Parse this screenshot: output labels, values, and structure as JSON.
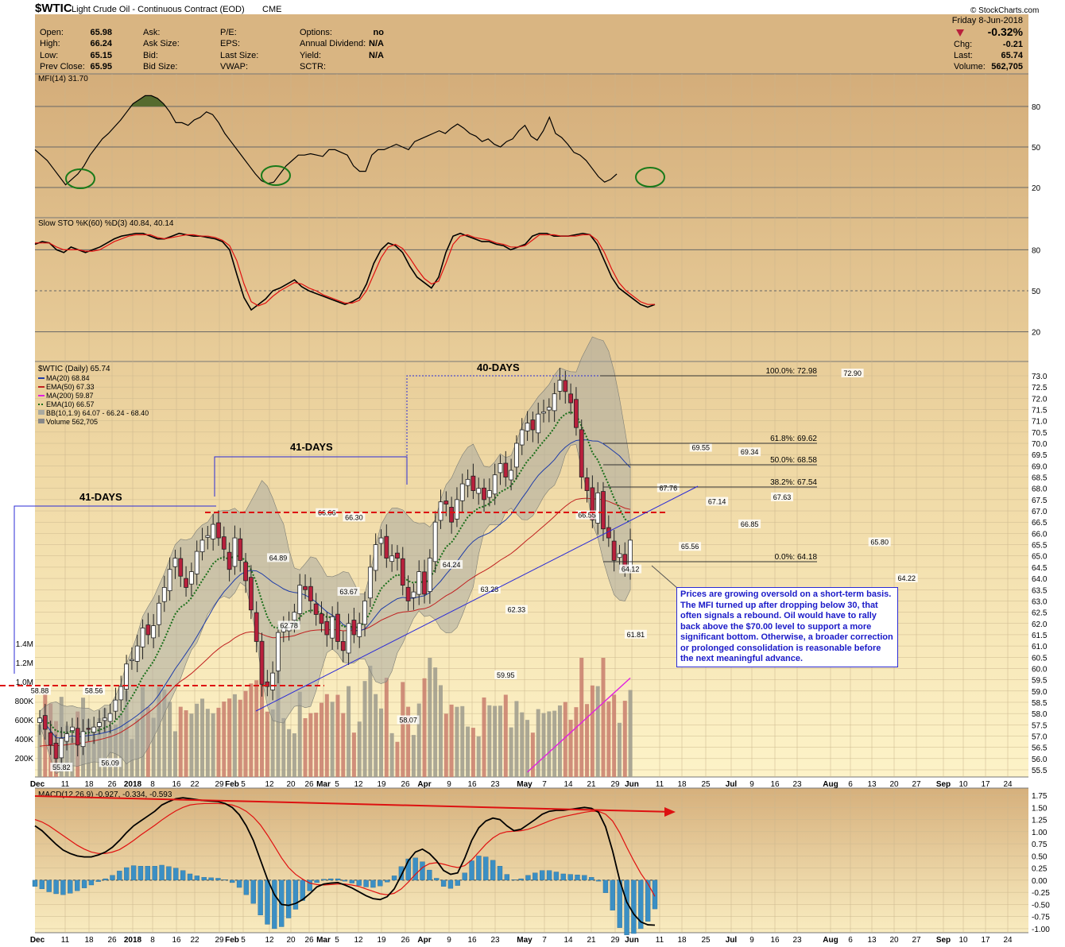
{
  "header": {
    "symbol": "$WTIC",
    "name": "Light Crude Oil - Continuous Contract (EOD)",
    "exchange": "CME",
    "date": "Friday   8-Jun-2018",
    "pct_change": "-0.32%",
    "open_label": "Open:",
    "open": "65.98",
    "high_label": "High:",
    "high": "66.24",
    "low_label": "Low:",
    "low": "65.15",
    "prev_label": "Prev Close:",
    "prev": "65.95",
    "ask_label": "Ask:",
    "asksize_label": "Ask Size:",
    "bid_label": "Bid:",
    "bidsize_label": "Bid Size:",
    "pe_label": "P/E:",
    "eps_label": "EPS:",
    "lastsize_label": "Last Size:",
    "vwap_label": "VWAP:",
    "options_label": "Options:",
    "options": "no",
    "div_label": "Annual Dividend:",
    "div": "N/A",
    "yield_label": "Yield:",
    "yield": "N/A",
    "sctr_label": "SCTR:",
    "chg_label": "Chg:",
    "chg": "-0.21",
    "last_label": "Last:",
    "last": "65.74",
    "volume_label": "Volume:",
    "volume": "562,705",
    "watermark": "© StockCharts.com"
  },
  "colors": {
    "bg_top": "#d4ad7a",
    "bg_bottom": "#fdf3c8",
    "candle_up": "#ffffff",
    "candle_down": "#b8203c",
    "ma20": "#1e3ca8",
    "ema50": "#c02020",
    "ma200": "#e020e0",
    "ema10": "#1a6e1a",
    "band_fill": "#a9aaa0",
    "macd_hist": "#3b8fc4",
    "annot": "#1a1ac8",
    "red_dash": "#dd1111"
  },
  "chart_data": [
    {
      "panel": "mfi",
      "type": "line",
      "title": "MFI(14) 31.70",
      "ylim": [
        0,
        100
      ],
      "y_ticks": [
        "80",
        "50",
        "20"
      ],
      "values": [
        48,
        44,
        40,
        34,
        28,
        22,
        26,
        30,
        36,
        44,
        50,
        56,
        60,
        65,
        70,
        76,
        82,
        85,
        88,
        88,
        86,
        82,
        76,
        68,
        68,
        66,
        70,
        72,
        76,
        74,
        68,
        60,
        54,
        48,
        42,
        36,
        30,
        25,
        23,
        24,
        30,
        36,
        40,
        44,
        44,
        45,
        44,
        43,
        48,
        48,
        46,
        44,
        36,
        32,
        32,
        44,
        48,
        48,
        50,
        52,
        50,
        48,
        54,
        56,
        58,
        60,
        62,
        60,
        64,
        67,
        64,
        60,
        58,
        54,
        56,
        52,
        50,
        54,
        56,
        62,
        66,
        58,
        55,
        62,
        72,
        60,
        57,
        52,
        46,
        44,
        40,
        34,
        28,
        24,
        26,
        30
      ]
    },
    {
      "panel": "stochastic",
      "type": "line",
      "title": "Slow STO %K(60) %D(3) 40.84, 40.14",
      "ylim": [
        0,
        100
      ],
      "y_ticks": [
        "80",
        "50",
        "20"
      ],
      "series": [
        {
          "name": "%K(60)",
          "values": [
            84,
            86,
            85,
            80,
            78,
            82,
            80,
            78,
            80,
            82,
            85,
            88,
            90,
            91,
            92,
            92,
            90,
            88,
            88,
            90,
            92,
            91,
            90,
            90,
            89,
            88,
            86,
            80,
            62,
            45,
            36,
            40,
            44,
            50,
            52,
            55,
            58,
            53,
            50,
            48,
            46,
            44,
            42,
            40,
            42,
            45,
            55,
            70,
            80,
            85,
            83,
            78,
            68,
            60,
            56,
            52,
            60,
            78,
            90,
            92,
            90,
            88,
            86,
            86,
            84,
            83,
            80,
            82,
            84,
            90,
            92,
            92,
            90,
            90,
            90,
            91,
            92,
            91,
            84,
            72,
            60,
            52,
            48,
            44,
            40,
            38,
            40
          ],
          "color": "#000000"
        },
        {
          "name": "%D(3)",
          "values": [
            85,
            85,
            85,
            82,
            80,
            80,
            80,
            79,
            79,
            80,
            83,
            86,
            88,
            90,
            91,
            91,
            91,
            89,
            88,
            89,
            90,
            91,
            91,
            90,
            90,
            89,
            87,
            83,
            72,
            55,
            42,
            39,
            41,
            46,
            50,
            53,
            56,
            55,
            52,
            50,
            47,
            45,
            43,
            41,
            41,
            43,
            50,
            62,
            74,
            82,
            84,
            81,
            74,
            66,
            59,
            55,
            57,
            70,
            84,
            90,
            91,
            89,
            88,
            87,
            85,
            84,
            82,
            82,
            83,
            87,
            91,
            91,
            91,
            90,
            90,
            90,
            91,
            91,
            87,
            78,
            66,
            56,
            50,
            46,
            42,
            40,
            40
          ],
          "color": "#e01010"
        }
      ]
    },
    {
      "panel": "price",
      "type": "candlestick",
      "title": "$WTIC (Daily) 65.74",
      "legend": [
        "MA(20) 68.84",
        "EMA(50) 67.33",
        "MA(200) 59.87",
        "EMA(10) 66.57",
        "BB(10,1.9) 64.07 - 66.24 - 68.40",
        "Volume 562,705"
      ],
      "ylim": [
        55.5,
        73.0
      ],
      "y_ticks": [
        "73.0",
        "72.5",
        "72.0",
        "71.5",
        "71.0",
        "70.5",
        "70.0",
        "69.5",
        "69.0",
        "68.5",
        "68.0",
        "67.5",
        "67.0",
        "66.5",
        "66.0",
        "65.5",
        "65.0",
        "64.5",
        "64.0",
        "63.5",
        "63.0",
        "62.5",
        "62.0",
        "61.5",
        "61.0",
        "60.5",
        "60.0",
        "59.5",
        "59.0",
        "58.5",
        "58.0",
        "57.5",
        "57.0",
        "56.5",
        "56.0",
        "55.5"
      ],
      "x_ticks": [
        "Dec",
        "11",
        "18",
        "26",
        "2018",
        "8",
        "16",
        "22",
        "29",
        "Feb",
        "5",
        "12",
        "20",
        "26",
        "Mar",
        "5",
        "12",
        "19",
        "26",
        "Apr",
        "9",
        "16",
        "23",
        "May",
        "7",
        "14",
        "21",
        "29",
        "Jun",
        "11",
        "18",
        "25",
        "Jul",
        "9",
        "16",
        "23",
        "Aug",
        "6",
        "13",
        "20",
        "27",
        "Sep",
        "10",
        "17",
        "24"
      ],
      "close": [
        57.8,
        57.3,
        56.6,
        56.0,
        56.9,
        57.1,
        57.4,
        56.6,
        57.2,
        57.3,
        57.4,
        57.6,
        57.8,
        58.0,
        58.6,
        59.2,
        60.2,
        60.4,
        61.0,
        61.8,
        61.5,
        61.9,
        62.9,
        63.6,
        64.4,
        64.9,
        64.1,
        63.6,
        64.3,
        65.2,
        65.7,
        65.9,
        66.4,
        65.8,
        65.3,
        64.4,
        65.8,
        64.8,
        63.9,
        62.6,
        61.2,
        59.3,
        59.2,
        59.8,
        61.6,
        61.8,
        62.0,
        62.5,
        63.7,
        63.5,
        63.0,
        62.4,
        62.0,
        61.5,
        62.3,
        61.2,
        60.8,
        62.0,
        61.5,
        62.0,
        63.0,
        64.5,
        65.5,
        65.8,
        64.9,
        65.0,
        64.9,
        63.7,
        63.0,
        63.4,
        64.3,
        63.3,
        64.9,
        66.5,
        67.4,
        67.3,
        66.5,
        67.5,
        68.2,
        68.4,
        67.9,
        68.0,
        67.5,
        67.9,
        68.6,
        69.1,
        68.5,
        68.8,
        70.0,
        70.6,
        70.9,
        70.6,
        71.3,
        71.4,
        71.6,
        72.2,
        72.8,
        72.3,
        71.8,
        70.7,
        68.5,
        67.9,
        66.6,
        67.8,
        66.2,
        65.8,
        64.8,
        65.1,
        64.5,
        65.7
      ]
    },
    {
      "panel": "volume",
      "type": "bar",
      "y_ticks": [
        "1.4M",
        "1.2M",
        "1.0M",
        "800K",
        "600K",
        "400K",
        "200K"
      ]
    },
    {
      "panel": "macd",
      "type": "line",
      "title": "MACD(12,26,9) -0.927, -0.334, -0.593",
      "ylim": [
        -1.05,
        1.8
      ],
      "y_ticks": [
        "1.75",
        "1.50",
        "1.25",
        "1.00",
        "0.75",
        "0.50",
        "0.25",
        "0.00",
        "-0.25",
        "-0.50",
        "-0.75",
        "-1.00"
      ],
      "x_ticks": [
        "Dec",
        "11",
        "18",
        "26",
        "2018",
        "8",
        "16",
        "22",
        "29",
        "Feb",
        "5",
        "12",
        "20",
        "26",
        "Mar",
        "5",
        "12",
        "19",
        "26",
        "Apr",
        "9",
        "16",
        "23",
        "May",
        "7",
        "14",
        "21",
        "29",
        "Jun",
        "11",
        "18",
        "25",
        "Jul",
        "9",
        "16",
        "23",
        "Aug",
        "6",
        "13",
        "20",
        "27",
        "Sep",
        "10",
        "17",
        "24"
      ],
      "series": [
        {
          "name": "MACD(12,26,9)",
          "values": [
            1.12,
            1.02,
            0.88,
            0.74,
            0.62,
            0.55,
            0.5,
            0.48,
            0.48,
            0.52,
            0.58,
            0.68,
            0.82,
            0.98,
            1.12,
            1.22,
            1.32,
            1.42,
            1.55,
            1.62,
            1.68,
            1.7,
            1.68,
            1.66,
            1.64,
            1.63,
            1.62,
            1.58,
            1.5,
            1.35,
            1.12,
            0.82,
            0.42,
            0.02,
            -0.3,
            -0.5,
            -0.52,
            -0.48,
            -0.4,
            -0.28,
            -0.14,
            -0.08,
            -0.06,
            -0.05,
            -0.1,
            -0.16,
            -0.24,
            -0.32,
            -0.38,
            -0.4,
            -0.34,
            -0.18,
            0.1,
            0.4,
            0.58,
            0.64,
            0.55,
            0.4,
            0.2,
            0.12,
            0.15,
            0.45,
            0.82,
            1.08,
            1.22,
            1.28,
            1.25,
            1.12,
            1.02,
            1.05,
            1.15,
            1.25,
            1.36,
            1.42,
            1.44,
            1.44,
            1.46,
            1.48,
            1.5,
            1.48,
            1.4,
            1.1,
            0.6,
            0.0,
            -0.45,
            -0.7,
            -0.86,
            -0.92,
            -0.927
          ]
        },
        {
          "name": "Signal",
          "values": [
            1.25,
            1.2,
            1.12,
            1.02,
            0.92,
            0.82,
            0.72,
            0.64,
            0.58,
            0.55,
            0.55,
            0.58,
            0.63,
            0.72,
            0.82,
            0.93,
            1.03,
            1.13,
            1.24,
            1.34,
            1.43,
            1.5,
            1.55,
            1.57,
            1.58,
            1.58,
            1.58,
            1.57,
            1.55,
            1.5,
            1.42,
            1.3,
            1.14,
            0.93,
            0.7,
            0.46,
            0.26,
            0.12,
            0.02,
            -0.06,
            -0.09,
            -0.1,
            -0.09,
            -0.08,
            -0.08,
            -0.1,
            -0.13,
            -0.18,
            -0.23,
            -0.28,
            -0.3,
            -0.27,
            -0.18,
            -0.04,
            0.12,
            0.26,
            0.34,
            0.36,
            0.33,
            0.29,
            0.26,
            0.3,
            0.42,
            0.58,
            0.74,
            0.87,
            0.96,
            1.0,
            1.01,
            1.02,
            1.05,
            1.1,
            1.16,
            1.22,
            1.27,
            1.31,
            1.34,
            1.37,
            1.4,
            1.42,
            1.42,
            1.36,
            1.22,
            0.98,
            0.68,
            0.4,
            0.14,
            -0.07,
            -0.334
          ]
        }
      ]
    }
  ],
  "annotations": {
    "days_41_a": "41-DAYS",
    "days_41_b": "41-DAYS",
    "days_40": "40-DAYS",
    "fib_100": "100.0%: 72.98",
    "fib_618": "61.8%: 69.62",
    "fib_50": "50.0%: 68.58",
    "fib_382": "38.2%: 67.54",
    "fib_0": "0.0%: 64.18",
    "note": "Prices are growing oversold on a short-term basis. The MFI turned up after dropping below 30, that often signals a rebound. Oil would have to rally back above the $70.00 level to support a more significant bottom. Otherwise, a broader correction or prolonged consolidation is reasonable before the next meaningful advance.",
    "price_labels": [
      {
        "text": "58.88",
        "x": 0,
        "y": 58.9
      },
      {
        "text": "58.56",
        "x": 10,
        "y": 58.9
      },
      {
        "text": "55.82",
        "x": 4,
        "y": 55.5
      },
      {
        "text": "56.09",
        "x": 13,
        "y": 55.7
      },
      {
        "text": "64.89",
        "x": 44,
        "y": 64.8
      },
      {
        "text": "62.78",
        "x": 46,
        "y": 61.8
      },
      {
        "text": "66.66",
        "x": 53,
        "y": 66.8
      },
      {
        "text": "66.30",
        "x": 58,
        "y": 66.6
      },
      {
        "text": "63.67",
        "x": 57,
        "y": 63.3
      },
      {
        "text": "58.07",
        "x": 68,
        "y": 57.6
      },
      {
        "text": "64.24",
        "x": 76,
        "y": 64.5
      },
      {
        "text": "63.28",
        "x": 83,
        "y": 63.4
      },
      {
        "text": "62.33",
        "x": 88,
        "y": 62.5
      },
      {
        "text": "59.95",
        "x": 86,
        "y": 59.6
      },
      {
        "text": "66.55",
        "x": 101,
        "y": 66.7
      },
      {
        "text": "64.12",
        "x": 109,
        "y": 64.3
      },
      {
        "text": "61.81",
        "x": 110,
        "y": 61.4
      },
      {
        "text": "67.76",
        "x": 116,
        "y": 67.9
      },
      {
        "text": "65.56",
        "x": 120,
        "y": 65.3
      },
      {
        "text": "67.14",
        "x": 125,
        "y": 67.3
      },
      {
        "text": "69.55",
        "x": 122,
        "y": 69.7
      },
      {
        "text": "69.34",
        "x": 131,
        "y": 69.5
      },
      {
        "text": "66.85",
        "x": 131,
        "y": 66.3
      },
      {
        "text": "67.63",
        "x": 137,
        "y": 67.5
      },
      {
        "text": "72.90",
        "x": 150,
        "y": 73.0
      },
      {
        "text": "65.80",
        "x": 155,
        "y": 65.5
      },
      {
        "text": "64.22",
        "x": 160,
        "y": 63.9
      }
    ]
  }
}
